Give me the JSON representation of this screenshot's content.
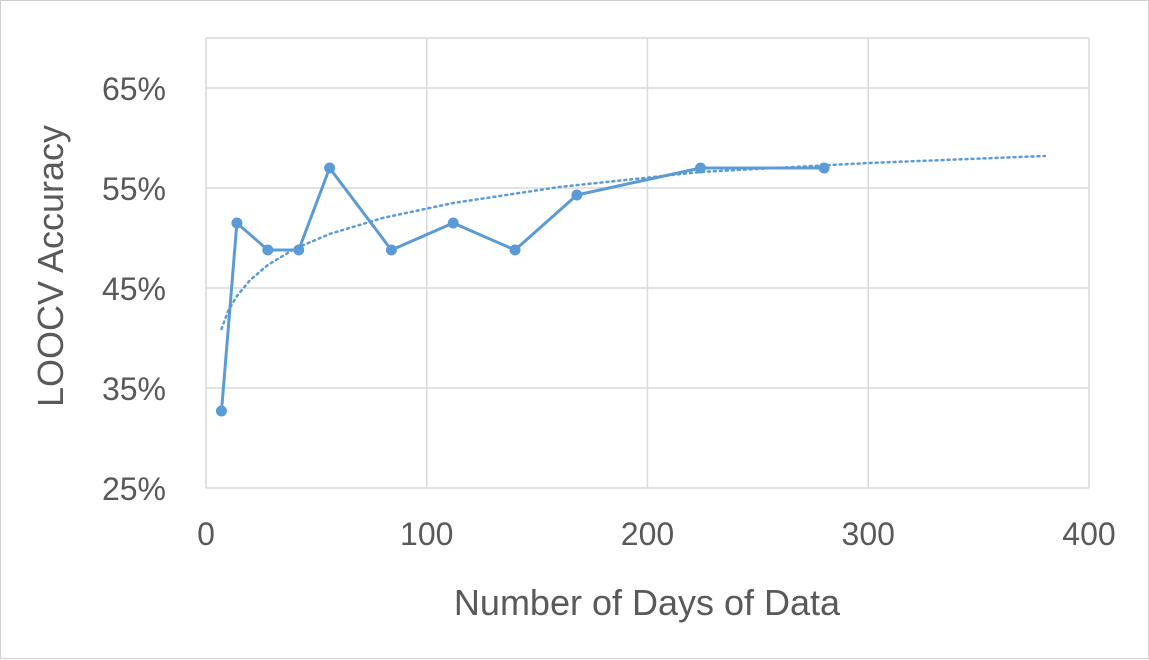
{
  "chart_data": {
    "type": "scatter",
    "title": "",
    "xlabel": "Number of Days of Data",
    "ylabel": "LOOCV Accuracy",
    "xlim": [
      0,
      400
    ],
    "ylim": [
      0.25,
      0.7
    ],
    "x_ticks": [
      0,
      100,
      200,
      300,
      400
    ],
    "x_tick_labels": [
      "0",
      "100",
      "200",
      "300",
      "400"
    ],
    "y_ticks": [
      0.25,
      0.35,
      0.45,
      0.55,
      0.65
    ],
    "y_tick_labels": [
      "25%",
      "35%",
      "45%",
      "55%",
      "65%"
    ],
    "grid": true,
    "legend": "none",
    "series": [
      {
        "style": "line-with-markers",
        "color": "#5b9bd5",
        "x": [
          7,
          14,
          28,
          42,
          56,
          84,
          112,
          140,
          168,
          224,
          280
        ],
        "y": [
          0.327,
          0.515,
          0.488,
          0.488,
          0.57,
          0.488,
          0.515,
          0.488,
          0.543,
          0.57,
          0.57
        ]
      },
      {
        "style": "dotted-trendline",
        "trend": "logarithmic",
        "color": "#5b9bd5",
        "x": [
          7,
          10,
          14,
          20,
          28,
          40,
          56,
          80,
          112,
          160,
          224,
          300,
          380
        ],
        "y": [
          0.409,
          0.427,
          0.442,
          0.458,
          0.473,
          0.489,
          0.504,
          0.52,
          0.535,
          0.551,
          0.566,
          0.575,
          0.582
        ]
      }
    ]
  }
}
